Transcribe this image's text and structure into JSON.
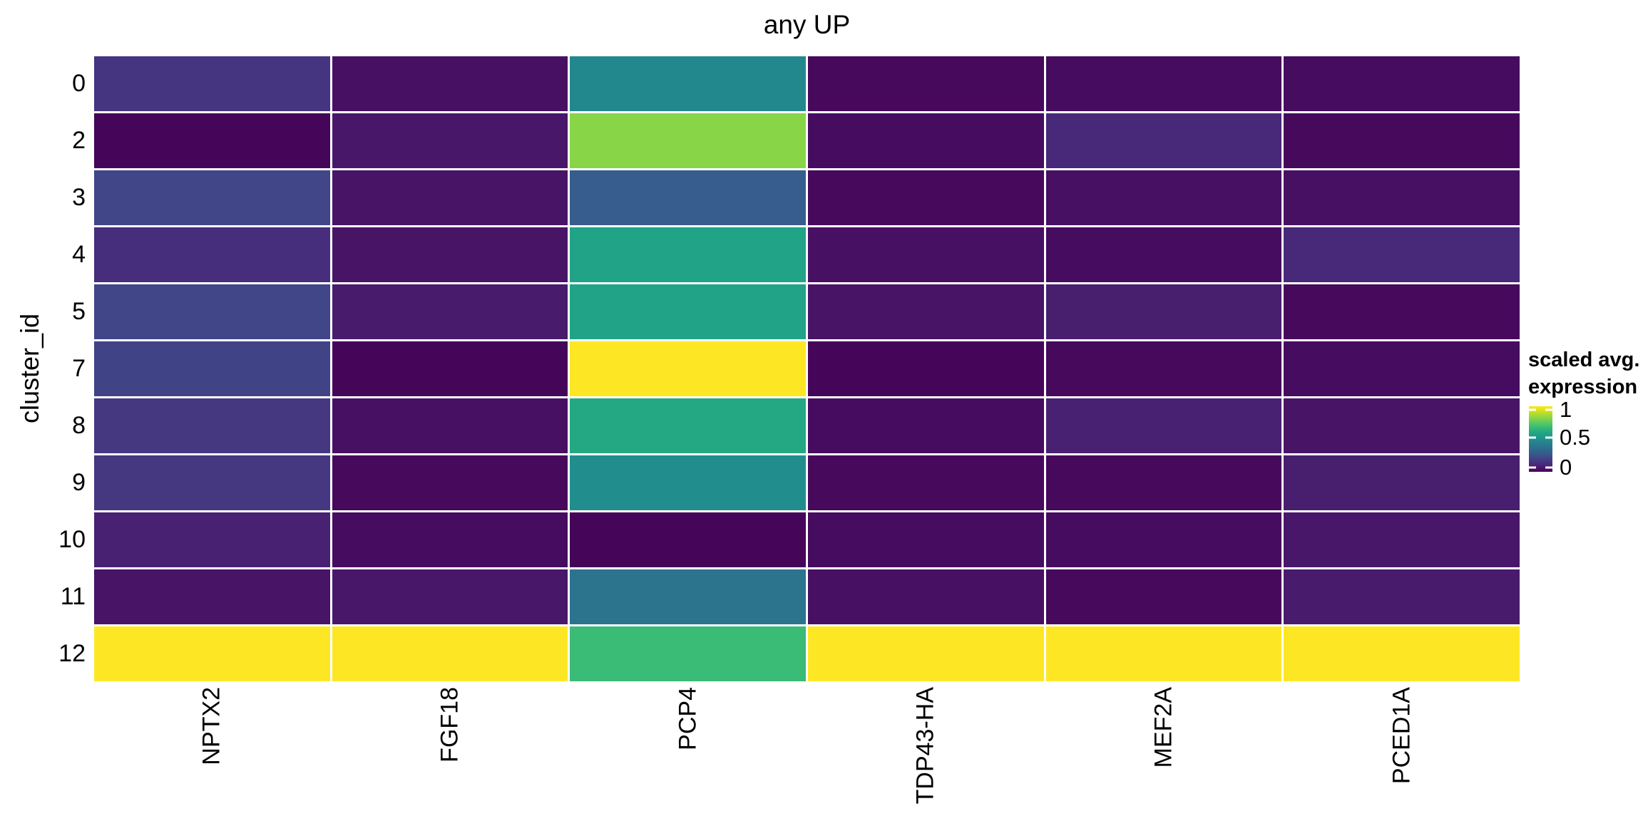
{
  "chart_data": {
    "type": "heatmap",
    "title": "any UP",
    "xlabel": "",
    "ylabel": "cluster_id",
    "columns": [
      "NPTX2",
      "FGF18",
      "PCP4",
      "TDP43-HA",
      "MEF2A",
      "PCED1A"
    ],
    "rows": [
      "0",
      "2",
      "3",
      "4",
      "5",
      "7",
      "8",
      "9",
      "10",
      "11",
      "12"
    ],
    "x_tick_rotation_deg": 90,
    "values": [
      [
        0.15,
        0.04,
        0.47,
        0.02,
        0.03,
        0.03
      ],
      [
        0.01,
        0.06,
        0.82,
        0.03,
        0.11,
        0.02
      ],
      [
        0.21,
        0.05,
        0.29,
        0.02,
        0.04,
        0.04
      ],
      [
        0.13,
        0.05,
        0.58,
        0.04,
        0.03,
        0.11
      ],
      [
        0.21,
        0.07,
        0.58,
        0.05,
        0.08,
        0.02
      ],
      [
        0.2,
        0.01,
        1.0,
        0.01,
        0.02,
        0.03
      ],
      [
        0.16,
        0.04,
        0.6,
        0.03,
        0.09,
        0.05
      ],
      [
        0.16,
        0.02,
        0.49,
        0.02,
        0.02,
        0.08
      ],
      [
        0.09,
        0.03,
        0.01,
        0.03,
        0.03,
        0.06
      ],
      [
        0.05,
        0.06,
        0.38,
        0.04,
        0.02,
        0.07
      ],
      [
        1.0,
        1.0,
        0.68,
        1.0,
        1.0,
        1.0
      ]
    ],
    "value_range": [
      0,
      1
    ],
    "legend": {
      "title_lines": [
        "scaled avg.",
        "expression"
      ],
      "tick_labels": [
        "1",
        "0.5",
        "0"
      ],
      "tick_positions_pct": [
        5.4,
        47.8,
        93.4
      ],
      "position": "right"
    },
    "colormap": {
      "name": "viridis",
      "stops": [
        "#440154",
        "#481567",
        "#482677",
        "#453781",
        "#404688",
        "#39568c",
        "#33638d",
        "#2d708e",
        "#287d8e",
        "#23898e",
        "#1f968b",
        "#20a386",
        "#29af7f",
        "#3cbc75",
        "#56c667",
        "#75d054",
        "#95d840",
        "#bade28",
        "#dde318",
        "#fde725"
      ]
    },
    "grid": {
      "gap_color": "#ffffff"
    },
    "colors": {
      "background": "#ffffff",
      "text": "#000000"
    }
  }
}
